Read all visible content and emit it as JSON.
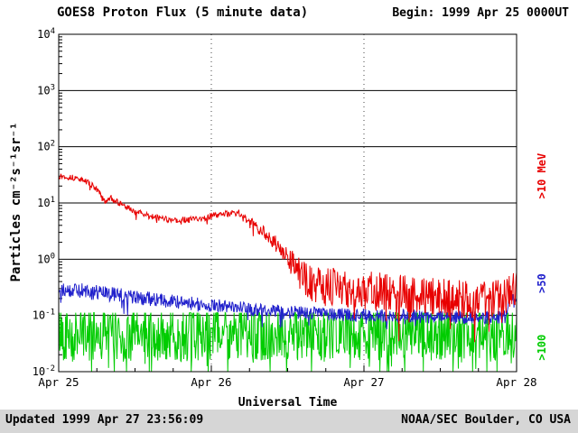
{
  "chart_data": {
    "type": "line",
    "title": "GOES8 Proton Flux (5 minute data)",
    "begin_label": "Begin: 1999 Apr 25 0000UT",
    "xlabel": "Universal Time",
    "ylabel": "Particles cm⁻²s⁻¹sr⁻¹",
    "x_tick_labels": [
      "Apr 25",
      "Apr 26",
      "Apr 27",
      "Apr 28"
    ],
    "x_range_days": [
      0,
      3
    ],
    "y_log_range": [
      -2,
      4
    ],
    "y_tick_exponents": [
      4,
      3,
      2,
      1,
      0,
      -1,
      -2
    ],
    "grid": {
      "h_lines_at_decades": true,
      "v_dotted_days": [
        1,
        2
      ],
      "minor_x_tick_hours": 6
    },
    "series": [
      {
        "id": "p10",
        "name": ">10 MeV",
        "label": ">10 MeV",
        "color": "#e80000",
        "label_log10": 1.48,
        "samples": 864,
        "seed": 13,
        "spike_prob": 0.05,
        "clamp_log10": [
          -2,
          4
        ],
        "trend_log10": [
          [
            0,
            1.48
          ],
          [
            0.12,
            1.44
          ],
          [
            0.2,
            1.36
          ],
          [
            0.27,
            1.18
          ],
          [
            0.3,
            1.02
          ],
          [
            0.34,
            1.1
          ],
          [
            0.42,
            0.95
          ],
          [
            0.5,
            0.85
          ],
          [
            0.6,
            0.76
          ],
          [
            0.72,
            0.7
          ],
          [
            0.85,
            0.7
          ],
          [
            0.95,
            0.73
          ],
          [
            1.05,
            0.8
          ],
          [
            1.18,
            0.82
          ],
          [
            1.28,
            0.62
          ],
          [
            1.38,
            0.4
          ],
          [
            1.48,
            0.1
          ],
          [
            1.58,
            -0.25
          ],
          [
            1.68,
            -0.48
          ],
          [
            1.85,
            -0.5
          ],
          [
            2.1,
            -0.58
          ],
          [
            2.4,
            -0.65
          ],
          [
            2.7,
            -0.72
          ],
          [
            2.9,
            -0.68
          ],
          [
            3,
            -0.5
          ]
        ],
        "noise_log10": [
          [
            0,
            0.05
          ],
          [
            1.2,
            0.06
          ],
          [
            1.45,
            0.15
          ],
          [
            1.6,
            0.3
          ],
          [
            1.75,
            0.35
          ],
          [
            3,
            0.33
          ]
        ]
      },
      {
        "id": "p50",
        "name": ">50 MeV",
        "label": ">50",
        "color": "#2121cc",
        "label_log10": -0.43,
        "samples": 864,
        "seed": 29,
        "spike_prob": 0.04,
        "clamp_log10": [
          -2,
          4
        ],
        "trend_log10": [
          [
            0,
            -0.52
          ],
          [
            0.2,
            -0.58
          ],
          [
            0.45,
            -0.66
          ],
          [
            0.7,
            -0.74
          ],
          [
            1,
            -0.82
          ],
          [
            1.3,
            -0.9
          ],
          [
            1.6,
            -0.95
          ],
          [
            2,
            -1.0
          ],
          [
            2.4,
            -1.02
          ],
          [
            2.8,
            -1.05
          ],
          [
            2.93,
            -1.02
          ],
          [
            2.96,
            -0.62
          ],
          [
            2.99,
            -0.8
          ],
          [
            3,
            -0.8
          ]
        ],
        "noise_log10": [
          [
            0,
            0.14
          ],
          [
            1,
            0.12
          ],
          [
            3,
            0.12
          ]
        ]
      },
      {
        "id": "p100",
        "name": ">100 MeV",
        "label": ">100",
        "color": "#00cc00",
        "label_log10": -1.57,
        "samples": 864,
        "seed": 42,
        "spike_prob": 0.1,
        "clamp_log10": [
          -2,
          -0.95
        ],
        "trend_log10": [
          [
            0,
            -1.3
          ],
          [
            0.6,
            -1.34
          ],
          [
            1.2,
            -1.3
          ],
          [
            1.8,
            -1.34
          ],
          [
            2.4,
            -1.3
          ],
          [
            3,
            -1.32
          ]
        ],
        "noise_log10": [
          [
            0,
            0.5
          ],
          [
            3,
            0.48
          ]
        ]
      }
    ]
  },
  "footer": {
    "updated": "Updated 1999 Apr 27 23:56:09",
    "credit": "NOAA/SEC Boulder, CO USA"
  }
}
